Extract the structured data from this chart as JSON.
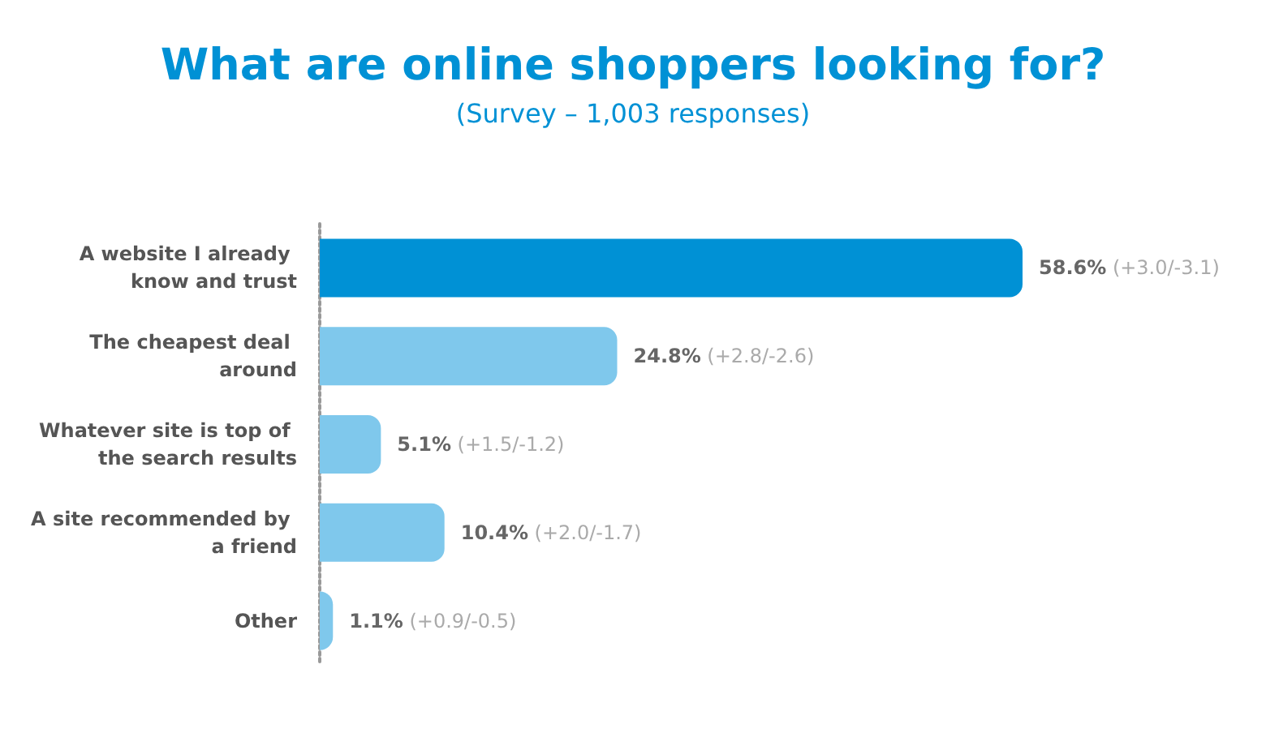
{
  "chart_data": {
    "type": "bar",
    "orientation": "horizontal",
    "title": "What are online shoppers looking for?",
    "subtitle": "(Survey – 1,003 responses)",
    "categories": [
      "A website I already know and trust",
      "The cheapest deal around",
      "Whatever site is top of the search results",
      "A site recommended by a friend",
      "Other"
    ],
    "values": [
      58.6,
      24.8,
      5.1,
      10.4,
      1.1
    ],
    "colors": [
      "#0091d5",
      "#7fc8ec",
      "#7fc8ec",
      "#7fc8ec",
      "#7fc8ec"
    ],
    "value_labels": [
      "58.6% (+3.0/-3.1)",
      "24.8% (+2.8/-2.6)",
      "5.1% (+1.5/-1.2)",
      "10.4% (+2.0/-1.7)",
      "1.1% (+0.9/-0.5)"
    ]
  }
}
